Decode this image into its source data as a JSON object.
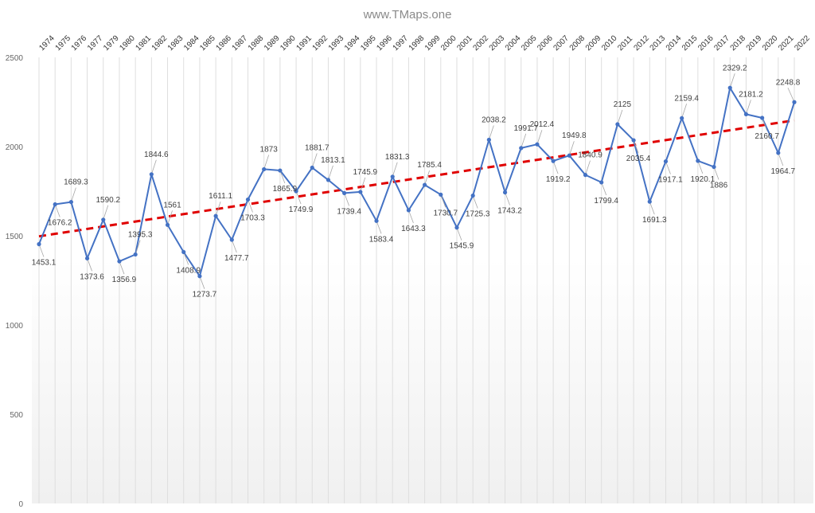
{
  "watermark": "www.TMaps.one",
  "chart_data": {
    "type": "line",
    "title": "",
    "xlabel": "",
    "ylabel": "",
    "ylim": [
      0,
      2500
    ],
    "yticks": [
      0,
      500,
      1000,
      1500,
      2000,
      2500
    ],
    "grid": "vertical",
    "categories": [
      "1974",
      "1975",
      "1976",
      "1977",
      "1979",
      "1980",
      "1981",
      "1982",
      "1983",
      "1984",
      "1985",
      "1986",
      "1987",
      "1988",
      "1989",
      "1990",
      "1991",
      "1992",
      "1993",
      "1994",
      "1995",
      "1996",
      "1997",
      "1998",
      "1999",
      "2000",
      "2001",
      "2002",
      "2003",
      "2004",
      "2005",
      "2006",
      "2007",
      "2008",
      "2009",
      "2010",
      "2011",
      "2012",
      "2013",
      "2014",
      "2015",
      "2016",
      "2017",
      "2018",
      "2019",
      "2020",
      "2021",
      "2022"
    ],
    "series": [
      {
        "values": [
          1453.1,
          1676.2,
          1689.3,
          1373.6,
          1590.2,
          1356.9,
          1395.3,
          1844.6,
          1561,
          1408.9,
          1273.7,
          1611.1,
          1477.7,
          1703.3,
          1873,
          1865.9,
          1749.9,
          1881.7,
          1813.1,
          1739.4,
          1745.9,
          1583.4,
          1831.3,
          1643.3,
          1785.4,
          1730.7,
          1545.9,
          1725.3,
          2038.2,
          1743.2,
          1991.7,
          2012.4,
          1919.2,
          1949.8,
          1840.9,
          1799.4,
          2125,
          2035.4,
          1691.3,
          1917.1,
          2159.4,
          1920.1,
          1886,
          2329.2,
          2181.2,
          2160.7,
          1964.7,
          2248.8
        ],
        "labels": [
          "1453.1",
          "1676.2",
          "1689.3",
          "1373.6",
          "1590.2",
          "1356.9",
          "1395.3",
          "1844.6",
          "1561",
          "1408.9",
          "1273.7",
          "1611.1",
          "1477.7",
          "1703.3",
          "1873",
          "1865.9",
          "1749.9",
          "1881.7",
          "1813.1",
          "1739.4",
          "1745.9",
          "1583.4",
          "1831.3",
          "1643.3",
          "1785.4",
          "1730.7",
          "1545.9",
          "1725.3",
          "2038.2",
          "1743.2",
          "1991.7",
          "2012.4",
          "1919.2",
          "1949.8",
          "1840.9",
          "1799.4",
          "2125",
          "2035.4",
          "1691.3",
          "1917.1",
          "2159.4",
          "1920.1",
          "1886",
          "2329.2",
          "2181.2",
          "2160.7",
          "1964.7",
          "2248.8"
        ],
        "color": "#4472c4"
      }
    ],
    "trendline": {
      "start": 1497,
      "end": 2147,
      "color": "#e00000"
    }
  }
}
